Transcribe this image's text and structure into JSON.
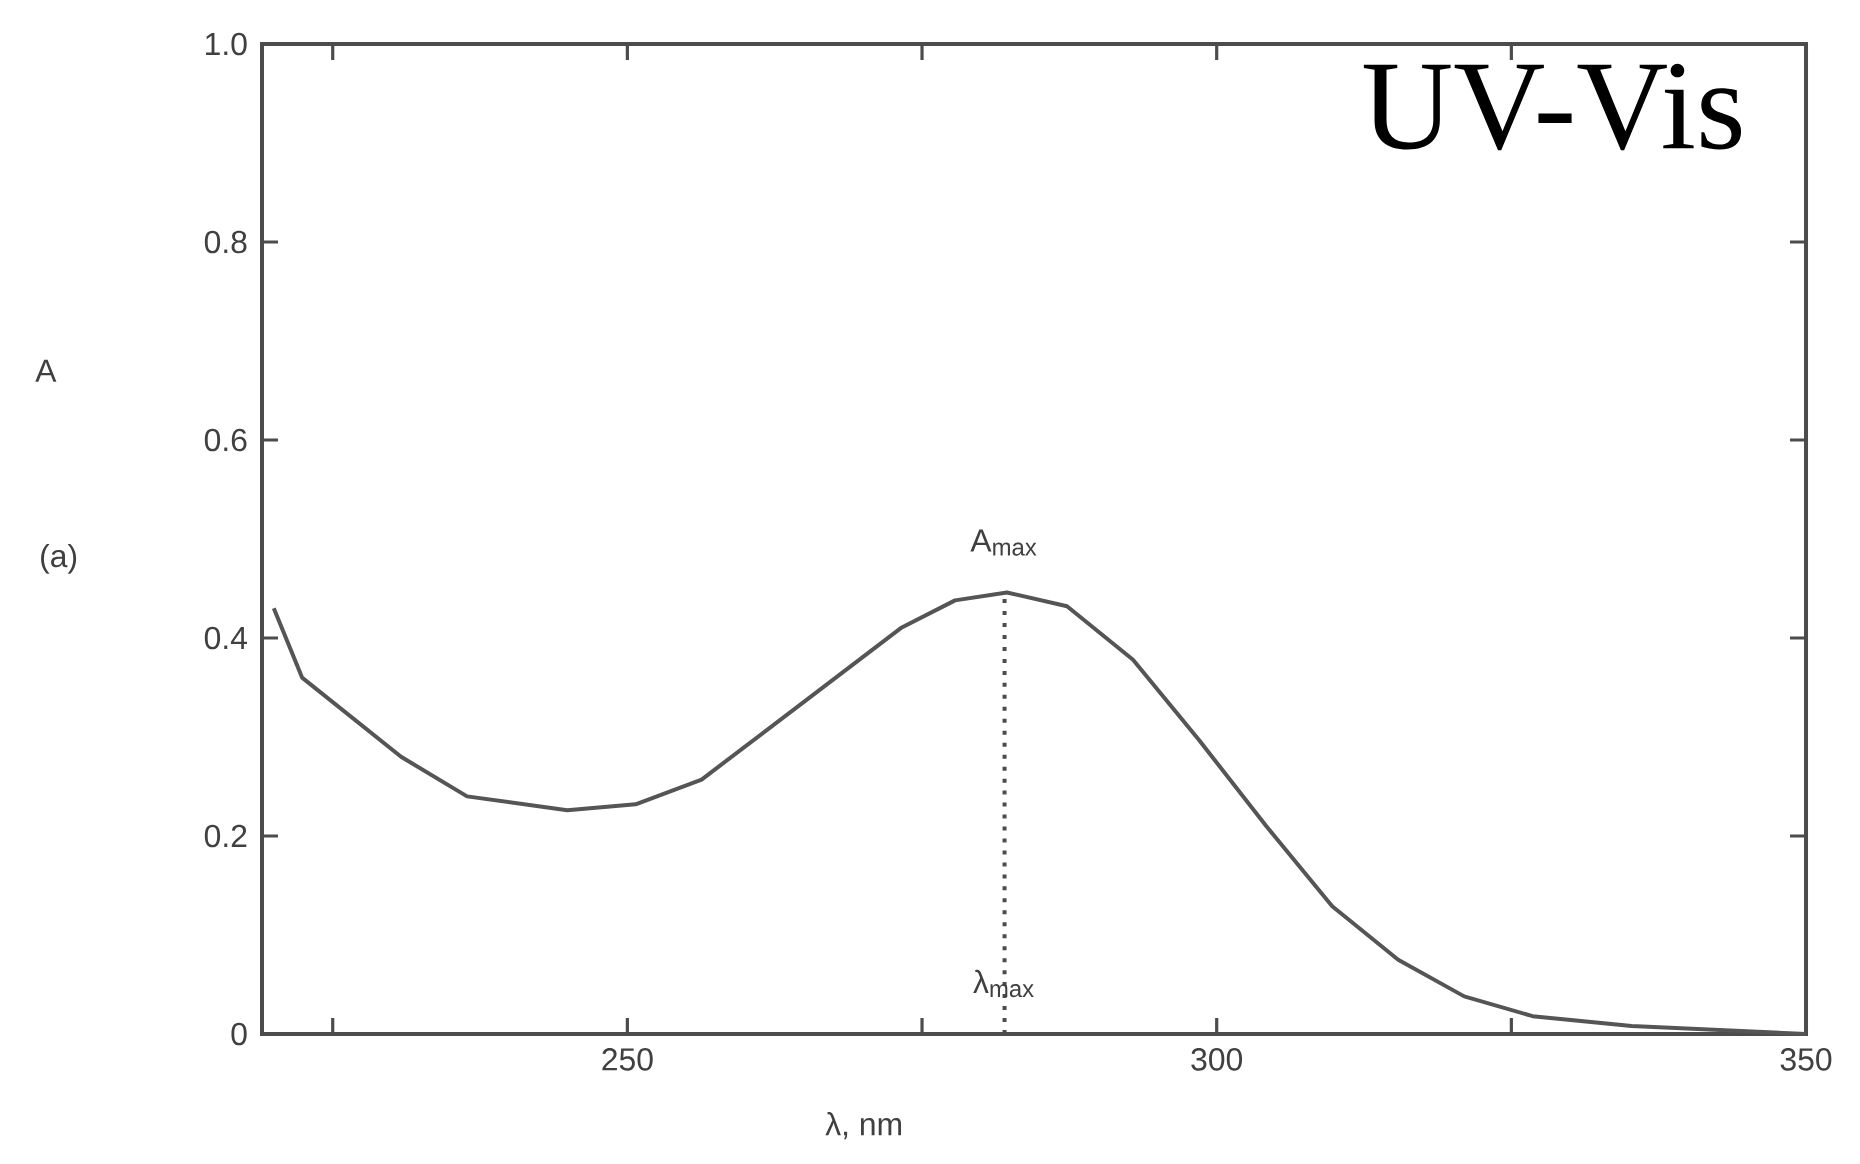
{
  "chart_data": {
    "type": "line",
    "title": "UV-Vis",
    "xlabel": "λ, nm",
    "ylabel": "A",
    "x": [
      220,
      222.4,
      230.8,
      236.4,
      244.9,
      250.7,
      256.3,
      264.7,
      273.2,
      277.8,
      282.2,
      287.3,
      292.9,
      298.5,
      304.2,
      309.8,
      315.4,
      321.0,
      326.8,
      335.2,
      350
    ],
    "values": [
      0.43,
      0.36,
      0.28,
      0.24,
      0.226,
      0.232,
      0.257,
      0.333,
      0.41,
      0.438,
      0.446,
      0.432,
      0.378,
      0.297,
      0.21,
      0.129,
      0.075,
      0.038,
      0.018,
      0.008,
      0
    ],
    "color": "#555555",
    "xlim": [
      219,
      350
    ],
    "ylim": [
      0,
      1
    ],
    "xticks": [
      {
        "value": 225,
        "label": null
      },
      250,
      {
        "value": 275,
        "label": null
      },
      300,
      {
        "value": 325,
        "label": null
      },
      350
    ],
    "yticks": [
      0,
      0.2,
      0.4,
      0.6,
      0.8,
      {
        "value": 1,
        "label": "1.0"
      }
    ],
    "ref_lines": [
      {
        "axis": "x",
        "value": 282,
        "line_style": "dotted"
      }
    ],
    "annotations": [
      "(a)",
      {
        "text": "A$_{max}$",
        "x": 282,
        "y": 0.446
      },
      {
        "text": "λ$_{max}$",
        "x": 282,
        "y": 0
      }
    ]
  }
}
